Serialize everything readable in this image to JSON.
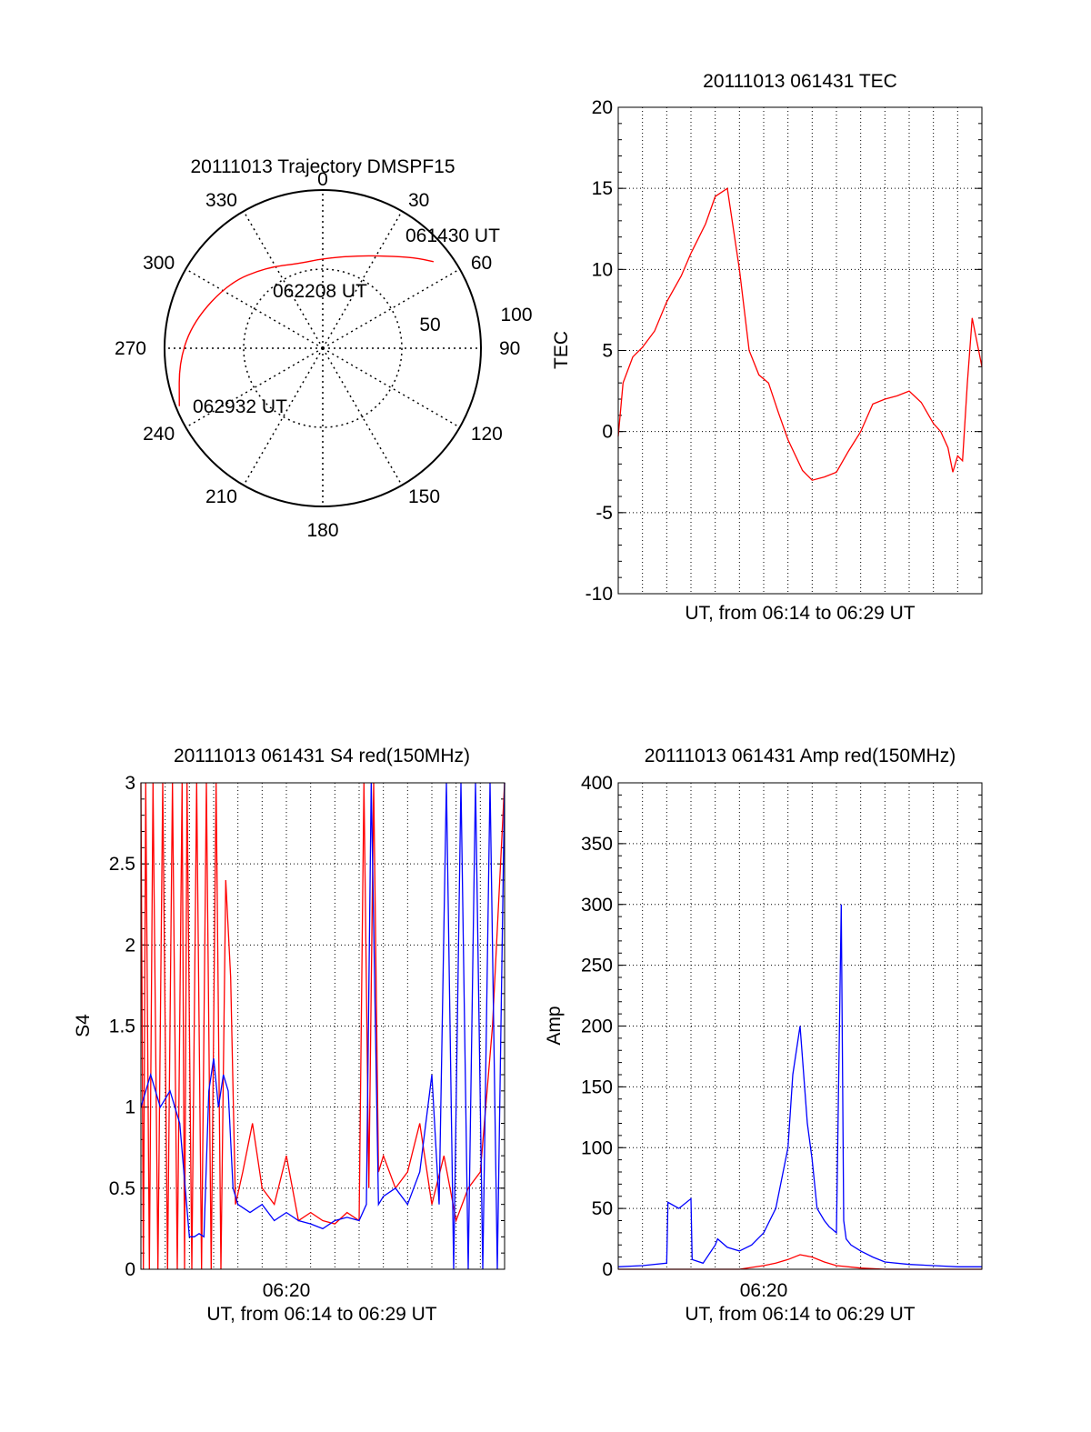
{
  "colors": {
    "red": "#ff0000",
    "blue": "#0000ff",
    "axis": "#000000",
    "grid": "#000000",
    "background": "#ffffff"
  },
  "chart_data": [
    {
      "type": "polar",
      "title": "20111013 Trajectory DMSPF15",
      "azimuth_labels": [
        "0",
        "30",
        "60",
        "90",
        "120",
        "150",
        "180",
        "210",
        "240",
        "270",
        "300",
        "330"
      ],
      "radial_labels": [
        "50",
        "100"
      ],
      "series": [
        {
          "color": "red",
          "points": [
            {
              "az": 52,
              "el": 10
            },
            {
              "az": 45,
              "el": 17
            },
            {
              "az": 35,
              "el": 26
            },
            {
              "az": 20,
              "el": 34
            },
            {
              "az": 0,
              "el": 39
            },
            {
              "az": -15,
              "el": 40
            },
            {
              "az": -35,
              "el": 34
            },
            {
              "az": -55,
              "el": 25
            },
            {
              "az": -78,
              "el": 15
            },
            {
              "az": -95,
              "el": 8
            },
            {
              "az": -112,
              "el": 2
            }
          ]
        }
      ],
      "annotations": [
        {
          "text": "061430 UT",
          "az": 52,
          "el": 10
        },
        {
          "text": "062208 UT",
          "az": -15,
          "el": 40
        },
        {
          "text": "062932 UT",
          "az": -112,
          "el": 2
        }
      ]
    },
    {
      "type": "line",
      "title": "20111013 061431 TEC",
      "xlabel": "UT, from 06:14 to 06:29 UT",
      "ylabel": "TEC",
      "ylim": [
        -10,
        20
      ],
      "yticks": [
        -10,
        -5,
        0,
        5,
        10,
        15,
        20
      ],
      "grid": true,
      "series": [
        {
          "color": "red",
          "x": [
            0,
            0.2,
            0.6,
            1.0,
            1.5,
            2.0,
            2.6,
            3.0,
            3.6,
            4.0,
            4.5,
            5.0,
            5.4,
            5.8,
            6.2,
            6.6,
            7.0,
            7.6,
            8.0,
            8.5,
            9.0,
            9.5,
            10.0,
            10.5,
            11.0,
            11.5,
            12.0,
            12.5,
            13.0,
            13.3,
            13.6,
            13.8,
            14.0,
            14.2,
            14.4,
            14.6,
            15.0
          ],
          "values": [
            -0.3,
            3.0,
            4.6,
            5.2,
            6.2,
            8.0,
            9.6,
            11.0,
            12.8,
            14.5,
            15.0,
            10.0,
            5.0,
            3.5,
            3.0,
            1.2,
            -0.5,
            -2.4,
            -3.0,
            -2.8,
            -2.5,
            -1.2,
            0.0,
            1.7,
            2.0,
            2.2,
            2.5,
            1.8,
            0.5,
            0.0,
            -1.0,
            -2.5,
            -1.5,
            -1.8,
            3.0,
            7.0,
            4.0
          ]
        }
      ]
    },
    {
      "type": "line",
      "title": "20111013 061431 S4 red(150MHz)",
      "xlabel": "UT, from 06:14 to 06:29 UT",
      "ylabel": "S4",
      "ylim": [
        0,
        3
      ],
      "yticks": [
        0,
        0.5,
        1,
        1.5,
        2,
        2.5,
        3
      ],
      "xtick_labels": [
        "06:20"
      ],
      "grid": true,
      "series": [
        {
          "color": "red",
          "x": [
            0,
            0.1,
            0.2,
            0.35,
            0.5,
            0.7,
            0.9,
            1.1,
            1.3,
            1.5,
            1.7,
            1.8,
            1.9,
            2.1,
            2.3,
            2.5,
            2.7,
            2.9,
            3.1,
            3.3,
            3.5,
            3.7,
            3.9,
            4.2,
            4.6,
            5.0,
            5.5,
            6.0,
            6.5,
            7.0,
            7.5,
            8.0,
            8.5,
            9.0,
            9.2,
            9.4,
            9.6,
            9.8,
            10.0,
            10.5,
            11.0,
            11.5,
            12.0,
            12.5,
            13.0,
            13.5,
            14.0,
            14.5,
            15.0
          ],
          "values": [
            3.0,
            0.0,
            3.0,
            0.0,
            3.0,
            0.0,
            3.0,
            0.0,
            3.0,
            0.0,
            3.0,
            0.0,
            3.0,
            0.0,
            3.0,
            0.0,
            3.0,
            0.0,
            3.0,
            0.0,
            2.4,
            1.8,
            0.4,
            0.6,
            0.9,
            0.5,
            0.4,
            0.7,
            0.3,
            0.35,
            0.3,
            0.28,
            0.35,
            0.3,
            3.0,
            0.5,
            3.0,
            0.6,
            0.7,
            0.5,
            0.6,
            0.9,
            0.4,
            0.7,
            0.3,
            0.5,
            0.6,
            1.5,
            3.0
          ]
        },
        {
          "color": "blue",
          "x": [
            0,
            0.4,
            0.8,
            1.2,
            1.6,
            2.0,
            2.2,
            2.4,
            2.6,
            2.8,
            3.0,
            3.2,
            3.4,
            3.6,
            3.8,
            4.0,
            4.5,
            5.0,
            5.5,
            6.0,
            6.5,
            7.0,
            7.5,
            8.0,
            8.5,
            9.0,
            9.3,
            9.5,
            9.8,
            10.0,
            10.5,
            11.0,
            11.5,
            12.0,
            12.3,
            12.6,
            12.9,
            13.2,
            13.5,
            13.8,
            14.1,
            14.4,
            14.7,
            15.0
          ],
          "values": [
            1.0,
            1.2,
            1.0,
            1.1,
            0.9,
            0.2,
            0.2,
            0.22,
            0.2,
            1.1,
            1.3,
            1.0,
            1.2,
            1.1,
            0.5,
            0.4,
            0.35,
            0.4,
            0.3,
            0.35,
            0.3,
            0.28,
            0.25,
            0.3,
            0.32,
            0.3,
            0.4,
            3.0,
            0.4,
            0.45,
            0.5,
            0.4,
            0.6,
            1.2,
            0.4,
            3.0,
            0.0,
            3.0,
            0.0,
            3.0,
            0.0,
            3.0,
            0.0,
            3.0
          ]
        }
      ]
    },
    {
      "type": "line",
      "title": "20111013 061431 Amp red(150MHz)",
      "xlabel": "UT, from 06:14 to 06:29 UT",
      "ylabel": "Amp",
      "ylim": [
        0,
        400
      ],
      "yticks": [
        0,
        50,
        100,
        150,
        200,
        250,
        300,
        350,
        400
      ],
      "xtick_labels": [
        "06:20"
      ],
      "grid": true,
      "series": [
        {
          "color": "blue",
          "x": [
            0,
            1.0,
            2.0,
            2.05,
            2.5,
            3.0,
            3.05,
            3.5,
            4.0,
            4.1,
            4.5,
            5.0,
            5.5,
            6.0,
            6.5,
            7.0,
            7.2,
            7.5,
            7.8,
            8.0,
            8.2,
            8.5,
            8.7,
            9.0,
            9.2,
            9.3,
            9.4,
            9.6,
            10.0,
            10.5,
            11.0,
            12.0,
            13.0,
            14.0,
            15.0
          ],
          "values": [
            2,
            3,
            5,
            55,
            50,
            58,
            8,
            5,
            20,
            25,
            18,
            15,
            20,
            30,
            50,
            100,
            160,
            200,
            120,
            90,
            50,
            40,
            35,
            30,
            300,
            40,
            25,
            20,
            15,
            10,
            6,
            4,
            3,
            2,
            2
          ]
        },
        {
          "color": "red",
          "x": [
            0,
            3.0,
            5.0,
            6.0,
            6.5,
            7.0,
            7.5,
            8.0,
            8.5,
            9.0,
            10.0,
            11.0,
            15.0
          ],
          "values": [
            0,
            0,
            0,
            3,
            5,
            8,
            12,
            10,
            6,
            3,
            1,
            0,
            0
          ]
        }
      ]
    }
  ]
}
